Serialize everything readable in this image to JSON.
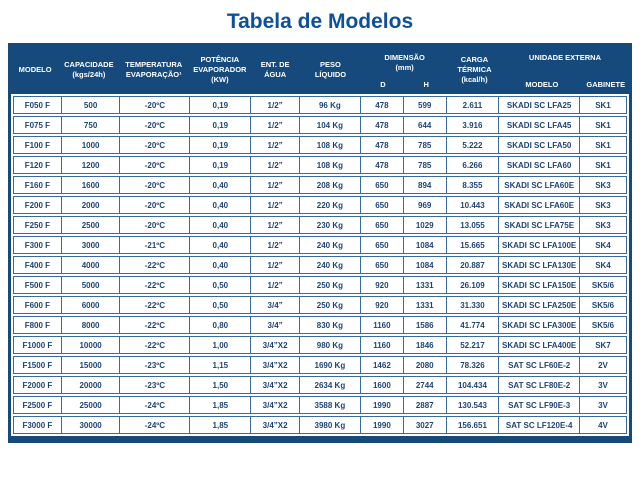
{
  "page": {
    "title": "Tabela de Modelos"
  },
  "colors": {
    "navy": "#164a7d",
    "title": "#0d509c",
    "text": "#1d4478",
    "line": "#3a6aa0",
    "page_bg": "#ffffff"
  },
  "table": {
    "headers": {
      "modelo": {
        "l1": "MODELO"
      },
      "capacidade": {
        "l1": "CAPACIDADE",
        "l2": "(kgs/24h)"
      },
      "temperatura": {
        "l1": "TEMPERATURA",
        "l2": "EVAPORAÇÃO¹"
      },
      "potencia": {
        "l1": "POTÊNCIA",
        "l2": "EVAPORADOR",
        "l3": "(KW)"
      },
      "agua": {
        "l1": "ENT. DE",
        "l2": "ÁGUA"
      },
      "peso": {
        "l1": "PESO",
        "l2": "LÍQUIDO"
      },
      "dimensao": {
        "l1": "DIMENSÃO",
        "l2": "(mm)",
        "sub_d": "D",
        "sub_h": "H"
      },
      "carga": {
        "l1": "CARGA",
        "l2": "TÉRMICA",
        "l3": "(kcal/h)"
      },
      "unidade": {
        "l1": "UNIDADE EXTERNA",
        "sub_modelo": "MODELO",
        "sub_gabinete": "GABINETE"
      }
    },
    "column_ids": [
      "modelo",
      "capacidade",
      "temperatura-evaporacao",
      "potencia-evaporador",
      "ent-agua",
      "peso-liquido",
      "dimensao-d",
      "dimensao-h",
      "carga-termica",
      "unidade-modelo",
      "unidade-gabinete"
    ],
    "rows": [
      [
        "F050 F",
        "500",
        "-20ºC",
        "0,19",
        "1/2”",
        "96 Kg",
        "478",
        "599",
        "2.611",
        "SKADI SC LFA25",
        "SK1"
      ],
      [
        "F075 F",
        "750",
        "-20ºC",
        "0,19",
        "1/2”",
        "104 Kg",
        "478",
        "644",
        "3.916",
        "SKADI SC LFA45",
        "SK1"
      ],
      [
        "F100 F",
        "1000",
        "-20ºC",
        "0,19",
        "1/2”",
        "108 Kg",
        "478",
        "785",
        "5.222",
        "SKADI SC LFA50",
        "SK1"
      ],
      [
        "F120 F",
        "1200",
        "-20ºC",
        "0,19",
        "1/2”",
        "108 Kg",
        "478",
        "785",
        "6.266",
        "SKADI SC LFA60",
        "SK1"
      ],
      [
        "F160 F",
        "1600",
        "-20ºC",
        "0,40",
        "1/2”",
        "208 Kg",
        "650",
        "894",
        "8.355",
        "SKADI SC LFA60E",
        "SK3"
      ],
      [
        "F200 F",
        "2000",
        "-20ºC",
        "0,40",
        "1/2”",
        "220 Kg",
        "650",
        "969",
        "10.443",
        "SKADI SC LFA60E",
        "SK3"
      ],
      [
        "F250 F",
        "2500",
        "-20ºC",
        "0,40",
        "1/2”",
        "230 Kg",
        "650",
        "1029",
        "13.055",
        "SKADI SC LFA75E",
        "SK3"
      ],
      [
        "F300 F",
        "3000",
        "-21ºC",
        "0,40",
        "1/2”",
        "240 Kg",
        "650",
        "1084",
        "15.665",
        "SKADI SC LFA100E",
        "SK4"
      ],
      [
        "F400 F",
        "4000",
        "-22ºC",
        "0,40",
        "1/2”",
        "240 Kg",
        "650",
        "1084",
        "20.887",
        "SKADI SC LFA130E",
        "SK4"
      ],
      [
        "F500 F",
        "5000",
        "-22ºC",
        "0,50",
        "1/2”",
        "250 Kg",
        "920",
        "1331",
        "26.109",
        "SKADI SC LFA150E",
        "SK5/6"
      ],
      [
        "F600 F",
        "6000",
        "-22ºC",
        "0,50",
        "3/4”",
        "250 Kg",
        "920",
        "1331",
        "31.330",
        "SKADI SC LFA250E",
        "SK5/6"
      ],
      [
        "F800 F",
        "8000",
        "-22ºC",
        "0,80",
        "3/4”",
        "830 Kg",
        "1160",
        "1586",
        "41.774",
        "SKADI SC LFA300E",
        "SK5/6"
      ],
      [
        "F1000 F",
        "10000",
        "-22ºC",
        "1,00",
        "3/4”X2",
        "980 Kg",
        "1160",
        "1846",
        "52.217",
        "SKADI SC LFA400E",
        "SK7"
      ],
      [
        "F1500 F",
        "15000",
        "-23ºC",
        "1,15",
        "3/4”X2",
        "1690 Kg",
        "1462",
        "2080",
        "78.326",
        "SAT SC LF60E-2",
        "2V"
      ],
      [
        "F2000 F",
        "20000",
        "-23ºC",
        "1,50",
        "3/4”X2",
        "2634 Kg",
        "1600",
        "2744",
        "104.434",
        "SAT SC LF80E-2",
        "3V"
      ],
      [
        "F2500 F",
        "25000",
        "-24ºC",
        "1,85",
        "3/4”X2",
        "3588 Kg",
        "1990",
        "2887",
        "130.543",
        "SAT SC LF90E-3",
        "3V"
      ],
      [
        "F3000 F",
        "30000",
        "-24ºC",
        "1,85",
        "3/4”X2",
        "3980 Kg",
        "1990",
        "3027",
        "156.651",
        "SAT SC LF120E-4",
        "4V"
      ]
    ]
  }
}
